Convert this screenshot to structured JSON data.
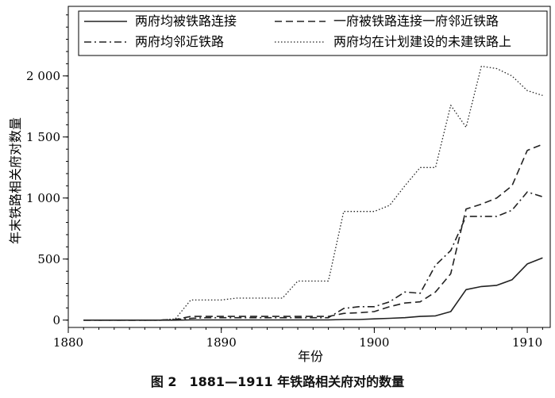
{
  "chart_data": {
    "type": "line",
    "xlabel": "年份",
    "ylabel": "年末铁路相关府对数量",
    "xlim": [
      1880,
      1911.5
    ],
    "ylim": [
      -60,
      2570
    ],
    "xticks": [
      1880,
      1890,
      1900,
      1910
    ],
    "yticks": [
      0,
      500,
      1000,
      1500,
      2000
    ],
    "ytick_labels": [
      "0",
      "500",
      "1 000",
      "1 500",
      "2 000"
    ],
    "grid": false,
    "legend_position": "top",
    "caption": "图 2　1881—1911 年铁路相关府对的数量",
    "x": [
      1881,
      1882,
      1883,
      1884,
      1885,
      1886,
      1887,
      1888,
      1889,
      1890,
      1891,
      1892,
      1893,
      1894,
      1895,
      1896,
      1897,
      1898,
      1899,
      1900,
      1901,
      1902,
      1903,
      1904,
      1905,
      1906,
      1907,
      1908,
      1909,
      1910,
      1911
    ],
    "series": [
      {
        "name": "两府均被铁路连接",
        "style": "solid",
        "values": [
          0,
          0,
          0,
          0,
          0,
          0,
          0,
          2,
          2,
          2,
          2,
          2,
          2,
          2,
          2,
          2,
          2,
          5,
          5,
          10,
          15,
          20,
          30,
          35,
          70,
          250,
          275,
          285,
          330,
          460,
          510
        ]
      },
      {
        "name": "一府被铁路连接一府邻近铁路",
        "style": "dash",
        "values": [
          0,
          0,
          0,
          0,
          0,
          0,
          5,
          30,
          30,
          30,
          30,
          30,
          30,
          30,
          30,
          30,
          30,
          55,
          60,
          70,
          110,
          140,
          150,
          230,
          380,
          910,
          950,
          1000,
          1100,
          1390,
          1440
        ]
      },
      {
        "name": "两府均邻近铁路",
        "style": "dashdot",
        "values": [
          0,
          0,
          0,
          0,
          0,
          0,
          5,
          15,
          20,
          20,
          20,
          20,
          20,
          20,
          20,
          20,
          20,
          95,
          110,
          110,
          150,
          230,
          220,
          450,
          570,
          850,
          850,
          850,
          900,
          1050,
          1010
        ]
      },
      {
        "name": "两府均在计划建设的未建铁路上",
        "style": "dot",
        "values": [
          0,
          0,
          0,
          0,
          0,
          0,
          10,
          165,
          165,
          165,
          180,
          180,
          180,
          180,
          320,
          320,
          320,
          890,
          890,
          890,
          940,
          1100,
          1250,
          1250,
          1760,
          1580,
          2080,
          2060,
          2000,
          1880,
          1840
        ]
      }
    ]
  }
}
